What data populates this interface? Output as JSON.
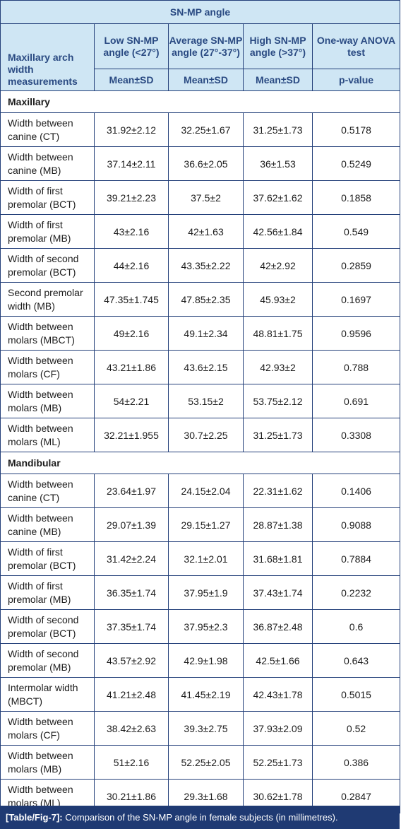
{
  "table": {
    "super_header": "SN-MP angle",
    "row_header": "Maxillary arch width measurements",
    "columns": [
      {
        "label": "Low SN-MP angle (<27°)",
        "sub": "Mean±SD"
      },
      {
        "label": "Average SN-MP angle (27°-37°)",
        "sub": "Mean±SD"
      },
      {
        "label": "High SN-MP angle (>37°)",
        "sub": "Mean±SD"
      },
      {
        "label": "One-way ANOVA test",
        "sub": "p-value"
      }
    ],
    "sections": [
      {
        "title": "Maxillary",
        "rows": [
          {
            "label": "Width between canine (CT)",
            "values": [
              "31.92±2.12",
              "32.25±1.67",
              "31.25±1.73",
              "0.5178"
            ]
          },
          {
            "label": "Width between canine (MB)",
            "values": [
              "37.14±2.11",
              "36.6±2.05",
              "36±1.53",
              "0.5249"
            ]
          },
          {
            "label": "Width of first premolar (BCT)",
            "values": [
              "39.21±2.23",
              "37.5±2",
              "37.62±1.62",
              "0.1858"
            ]
          },
          {
            "label": "Width of first premolar (MB)",
            "values": [
              "43±2.16",
              "42±1.63",
              "42.56±1.84",
              "0.549"
            ]
          },
          {
            "label": "Width of second premolar (BCT)",
            "values": [
              "44±2.16",
              "43.35±2.22",
              "42±2.92",
              "0.2859"
            ]
          },
          {
            "label": "Second premolar width (MB)",
            "values": [
              "47.35±1.745",
              "47.85±2.35",
              "45.93±2",
              "0.1697"
            ]
          },
          {
            "label": "Width between molars (MBCT)",
            "values": [
              "49±2.16",
              "49.1±2.34",
              "48.81±1.75",
              "0.9596"
            ]
          },
          {
            "label": "Width between molars (CF)",
            "values": [
              "43.21±1.86",
              "43.6±2.15",
              "42.93±2",
              "0.788"
            ]
          },
          {
            "label": "Width between molars (MB)",
            "values": [
              "54±2.21",
              "53.15±2",
              "53.75±2.12",
              "0.691"
            ]
          },
          {
            "label": "Width between molars (ML)",
            "values": [
              "32.21±1.955",
              "30.7±2.25",
              "31.25±1.73",
              "0.3308"
            ]
          }
        ]
      },
      {
        "title": "Mandibular",
        "rows": [
          {
            "label": "Width between canine (CT)",
            "values": [
              "23.64±1.97",
              "24.15±2.04",
              "22.31±1.62",
              "0.1406"
            ]
          },
          {
            "label": "Width between canine (MB)",
            "values": [
              "29.07±1.39",
              "29.15±1.27",
              "28.87±1.38",
              "0.9088"
            ]
          },
          {
            "label": "Width of first premolar (BCT)",
            "values": [
              "31.42±2.24",
              "32.1±2.01",
              "31.68±1.81",
              "0.7884"
            ]
          },
          {
            "label": "Width of first premolar (MB)",
            "values": [
              "36.35±1.74",
              "37.95±1.9",
              "37.43±1.74",
              "0.2232"
            ]
          },
          {
            "label": "Width of second premolar (BCT)",
            "values": [
              "37.35±1.74",
              "37.95±2.3",
              "36.87±2.48",
              "0.6"
            ]
          },
          {
            "label": "Width of second premolar (MB)",
            "values": [
              "43.57±2.92",
              "42.9±1.98",
              "42.5±1.66",
              "0.643"
            ]
          },
          {
            "label": "Intermolar width (MBCT)",
            "values": [
              "41.21±2.48",
              "41.45±2.19",
              "42.43±1.78",
              "0.5015"
            ]
          },
          {
            "label": "Width between molars (CF)",
            "values": [
              "38.42±2.63",
              "39.3±2.75",
              "37.93±2.09",
              "0.52"
            ]
          },
          {
            "label": "Width between molars (MB)",
            "values": [
              "51±2.16",
              "52.25±2.05",
              "52.25±1.73",
              "0.386"
            ]
          },
          {
            "label": "Width between molars (ML)",
            "values": [
              "30.21±1.86",
              "29.3±1.68",
              "30.62±1.78",
              "0.2847"
            ]
          }
        ]
      }
    ]
  },
  "caption": {
    "tag": "[Table/Fig-7]:",
    "text": "Comparison of the SN-MP angle in female subjects (in millimetres)."
  },
  "colors": {
    "header_bg": "#cfe6f4",
    "header_text": "#2a4a82",
    "border": "#24407a",
    "caption_bg": "#1f3a73"
  }
}
